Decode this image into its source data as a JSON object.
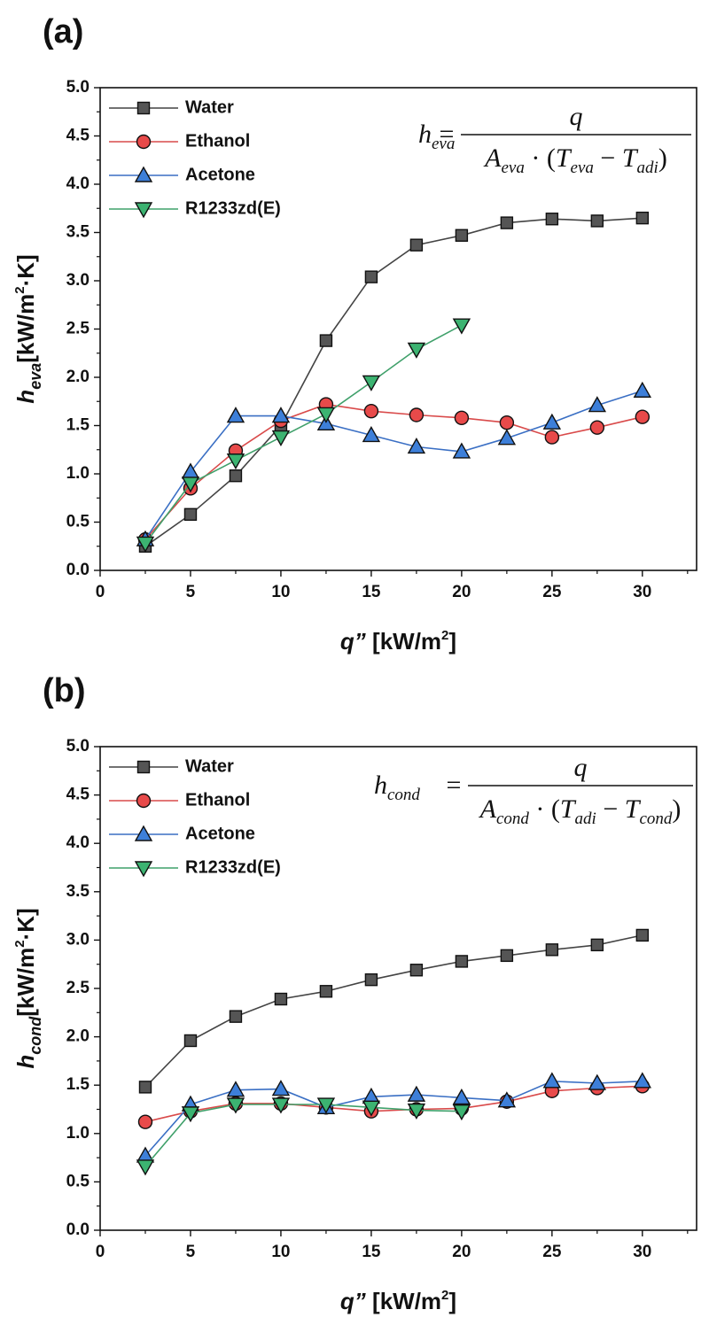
{
  "chart_data": [
    {
      "type": "line",
      "panel_label": "(a)",
      "ylabel": {
        "symbol": "h",
        "subscript": "eva",
        "unit_pre": "[kW/m",
        "unit_sup": "2",
        "unit_post": "·K]"
      },
      "xlabel": {
        "symbol": "q”",
        "unit_pre": " [kW/m",
        "unit_sup": "2",
        "unit_post": "]"
      },
      "xlim": [
        0,
        33
      ],
      "ylim": [
        0,
        5
      ],
      "xticks": [
        "0",
        "5",
        "10",
        "15",
        "20",
        "25",
        "30"
      ],
      "yticks": [
        "0.0",
        "0.5",
        "1.0",
        "1.5",
        "2.0",
        "2.5",
        "3.0",
        "3.5",
        "4.0",
        "4.5",
        "5.0"
      ],
      "formula": {
        "lhs": "h",
        "lhs_sub": "eva",
        "num": "q",
        "den_A": "A",
        "den_A_sub": "eva",
        "den_T1": "T",
        "den_T1_sub": "eva",
        "den_T2": "T",
        "den_T2_sub": "adi"
      },
      "legend_position": "top-left",
      "series": [
        {
          "name": "Water",
          "marker": "square",
          "line_color": "#444444",
          "fill": "#555555",
          "x": [
            2.5,
            5,
            7.5,
            10,
            12.5,
            15,
            17.5,
            20,
            22.5,
            25,
            27.5,
            30
          ],
          "y": [
            0.25,
            0.58,
            0.98,
            1.5,
            2.38,
            3.04,
            3.37,
            3.47,
            3.6,
            3.64,
            3.62,
            3.65
          ]
        },
        {
          "name": "Ethanol",
          "marker": "circle",
          "line_color": "#d94a4a",
          "fill": "#e84a4a",
          "x": [
            2.5,
            5,
            7.5,
            10,
            12.5,
            15,
            17.5,
            20,
            22.5,
            25,
            27.5,
            30
          ],
          "y": [
            0.32,
            0.85,
            1.24,
            1.55,
            1.72,
            1.65,
            1.61,
            1.58,
            1.53,
            1.38,
            1.48,
            1.59
          ]
        },
        {
          "name": "Acetone",
          "marker": "triangle-up",
          "line_color": "#3a6fc4",
          "fill": "#3d7fd9",
          "x": [
            2.5,
            5,
            7.5,
            10,
            12.5,
            15,
            17.5,
            20,
            22.5,
            25,
            27.5,
            30
          ],
          "y": [
            0.32,
            1.02,
            1.6,
            1.6,
            1.52,
            1.4,
            1.28,
            1.23,
            1.37,
            1.53,
            1.71,
            1.86
          ]
        },
        {
          "name": "R1233zd(E)",
          "marker": "triangle-down",
          "line_color": "#3fa06a",
          "fill": "#3cb371",
          "x": [
            2.5,
            5,
            7.5,
            10,
            12.5,
            15,
            17.5,
            20
          ],
          "y": [
            0.28,
            0.9,
            1.14,
            1.38,
            1.62,
            1.95,
            2.29,
            2.54
          ]
        }
      ]
    },
    {
      "type": "line",
      "panel_label": "(b)",
      "ylabel": {
        "symbol": "h",
        "subscript": "cond",
        "unit_pre": "[kW/m",
        "unit_sup": "2",
        "unit_post": "·K]"
      },
      "xlabel": {
        "symbol": "q”",
        "unit_pre": " [kW/m",
        "unit_sup": "2",
        "unit_post": "]"
      },
      "xlim": [
        0,
        33
      ],
      "ylim": [
        0,
        5
      ],
      "xticks": [
        "0",
        "5",
        "10",
        "15",
        "20",
        "25",
        "30"
      ],
      "yticks": [
        "0.0",
        "0.5",
        "1.0",
        "1.5",
        "2.0",
        "2.5",
        "3.0",
        "3.5",
        "4.0",
        "4.5",
        "5.0"
      ],
      "formula": {
        "lhs": "h",
        "lhs_sub": "cond",
        "num": "q",
        "den_A": "A",
        "den_A_sub": "cond",
        "den_T1": "T",
        "den_T1_sub": "adi",
        "den_T2": "T",
        "den_T2_sub": "cond"
      },
      "legend_position": "top-left",
      "series": [
        {
          "name": "Water",
          "marker": "square",
          "line_color": "#444444",
          "fill": "#555555",
          "x": [
            2.5,
            5,
            7.5,
            10,
            12.5,
            15,
            17.5,
            20,
            22.5,
            25,
            27.5,
            30
          ],
          "y": [
            1.48,
            1.96,
            2.21,
            2.39,
            2.47,
            2.59,
            2.69,
            2.78,
            2.84,
            2.9,
            2.95,
            3.05
          ]
        },
        {
          "name": "Ethanol",
          "marker": "circle",
          "line_color": "#d94a4a",
          "fill": "#e84a4a",
          "x": [
            2.5,
            5,
            7.5,
            10,
            12.5,
            15,
            17.5,
            20,
            22.5,
            25,
            27.5,
            30
          ],
          "y": [
            1.12,
            1.23,
            1.31,
            1.31,
            1.27,
            1.23,
            1.25,
            1.26,
            1.33,
            1.44,
            1.47,
            1.49
          ]
        },
        {
          "name": "Acetone",
          "marker": "triangle-up",
          "line_color": "#3a6fc4",
          "fill": "#3d7fd9",
          "x": [
            2.5,
            5,
            7.5,
            10,
            12.5,
            15,
            17.5,
            20,
            22.5,
            25,
            27.5,
            30
          ],
          "y": [
            0.77,
            1.3,
            1.45,
            1.46,
            1.27,
            1.38,
            1.4,
            1.37,
            1.34,
            1.54,
            1.52,
            1.54
          ]
        },
        {
          "name": "R1233zd(E)",
          "marker": "triangle-down",
          "line_color": "#3fa06a",
          "fill": "#3cb371",
          "x": [
            2.5,
            5,
            7.5,
            10,
            12.5,
            15,
            17.5,
            20
          ],
          "y": [
            0.66,
            1.21,
            1.3,
            1.3,
            1.3,
            1.27,
            1.24,
            1.23
          ]
        }
      ]
    }
  ]
}
